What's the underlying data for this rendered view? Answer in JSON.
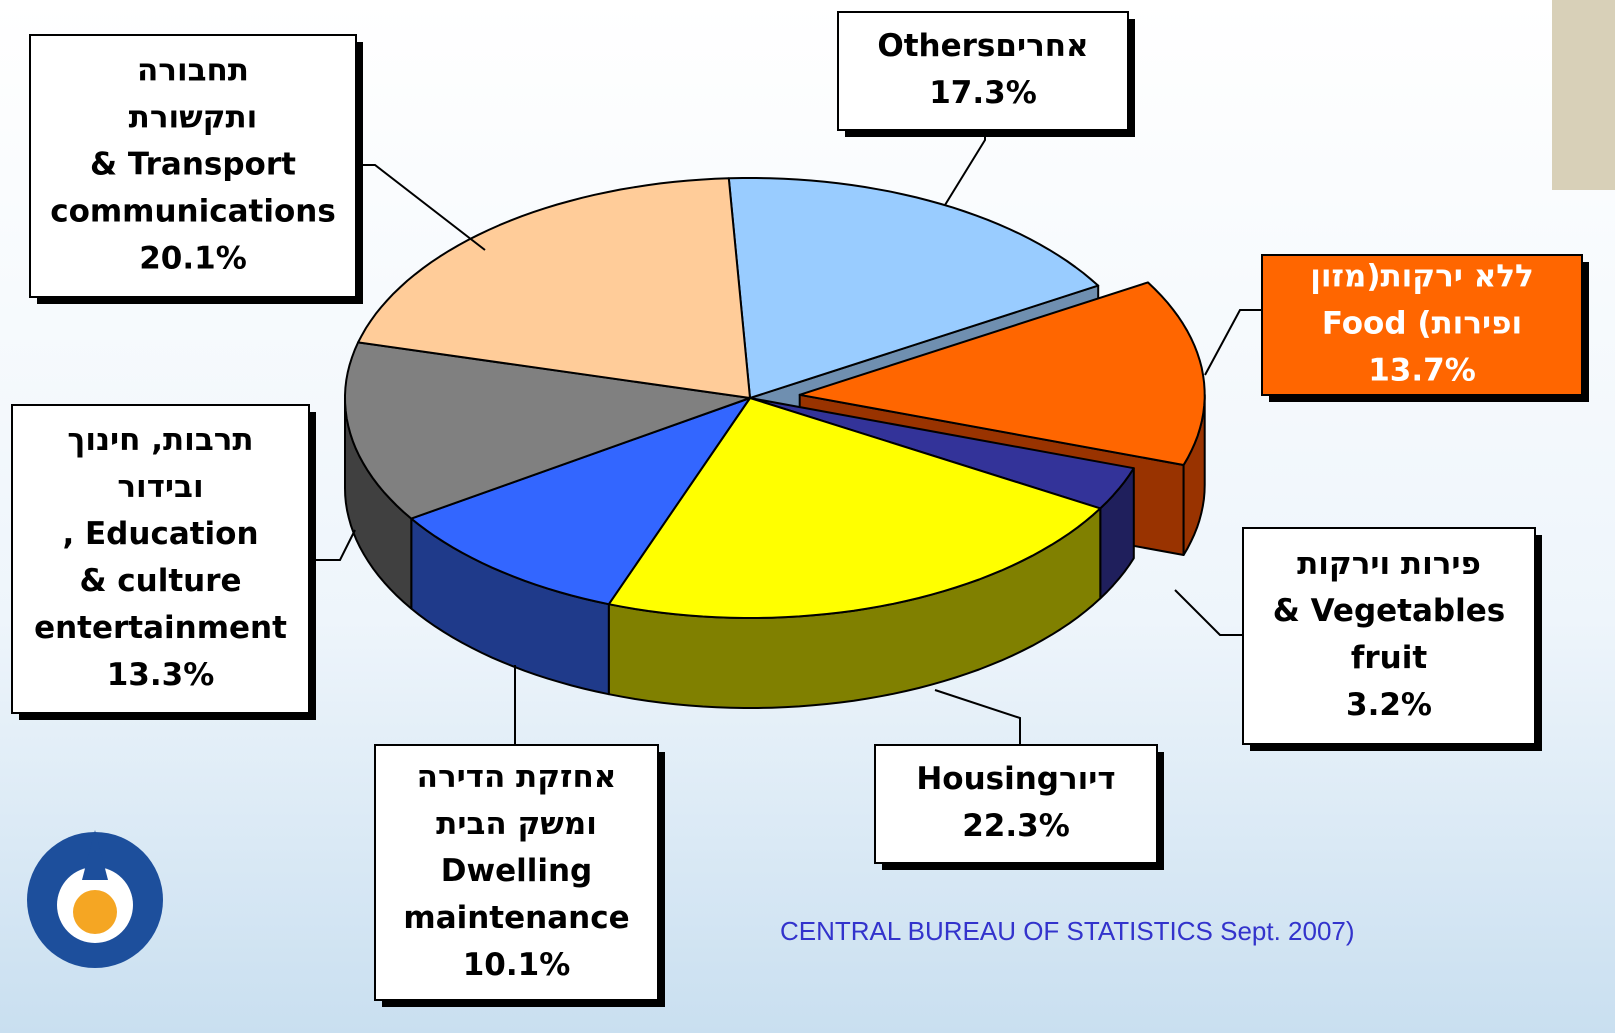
{
  "chart_data": {
    "type": "pie",
    "categories": [
      [
        "Othersםירחא"
      ],
      [
        "ןוזמ)תוקרי אלל",
        "Food (תוריפו"
      ],
      [
        "תוקריו תוריפ",
        "& Vegetables",
        "fruit"
      ],
      [
        "Housingרויד"
      ],
      [
        "הרידה תקזחא",
        "תיבה קשמו",
        "Dwelling",
        "maintenance"
      ],
      [
        "ךוניח ,תוברת",
        "רודיבו",
        ", Education",
        "& culture",
        "entertainment"
      ],
      [
        "הרובחת",
        "תרושקתו",
        "& Transport",
        "communications"
      ]
    ],
    "values": [
      17.3,
      13.7,
      3.2,
      22.3,
      10.1,
      13.3,
      20.1
    ],
    "value_labels": [
      "17.3%",
      "13.7%",
      "3.2%",
      "22.3%",
      "10.1%",
      "13.3%",
      "20.1%"
    ],
    "colors": [
      "#99ccff",
      "#ff6600",
      "#333399",
      "#ffff00",
      "#3366ff",
      "#808080",
      "#ffcc99"
    ],
    "side_colors": [
      "#6f8fb0",
      "#993300",
      "#1f1f5c",
      "#808000",
      "#1f3a8a",
      "#404040",
      "#b08a68"
    ],
    "explode": [
      false,
      true,
      false,
      false,
      false,
      false,
      false
    ],
    "source": "CENTRAL BUREAU OF STATISTICS Sept. 2007)"
  }
}
